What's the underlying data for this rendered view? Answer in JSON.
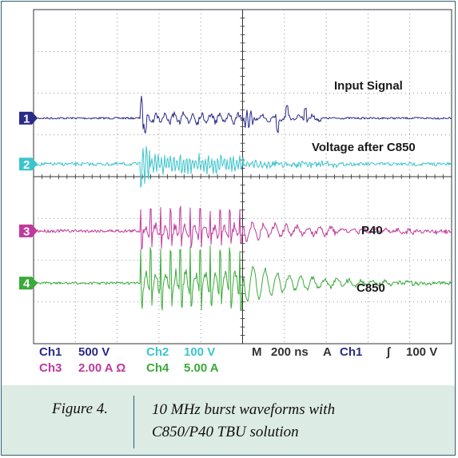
{
  "chart_data": {
    "type": "line",
    "grid": true,
    "x_divisions": 10,
    "y_divisions": 8,
    "channels": [
      {
        "id": "1",
        "name": "Input Signal",
        "color": "#2a2a8a",
        "level_div": 2.6
      },
      {
        "id": "2",
        "name": "Voltage after C850",
        "color": "#3cc4cc",
        "level_div": 3.7
      },
      {
        "id": "3",
        "name": "P40",
        "color": "#c0399b",
        "level_div": 5.3
      },
      {
        "id": "4",
        "name": "C850",
        "color": "#3aaa3a",
        "level_div": 6.55
      }
    ],
    "settings": [
      {
        "ch": "Ch1",
        "value": "500 V",
        "color": "#2a2a8a"
      },
      {
        "ch": "Ch2",
        "value": "100 V",
        "color": "#3cc4cc"
      },
      {
        "ch": "Ch3",
        "value": "2.00 A Ω",
        "color": "#c0399b"
      },
      {
        "ch": "Ch4",
        "value": "5.00 A",
        "color": "#3aaa3a"
      }
    ],
    "timebase": {
      "m": "M",
      "value": "200 ns",
      "a": "A",
      "ch": "Ch1",
      "slope": "∫",
      "level": "100 V"
    }
  },
  "caption": {
    "number": "Figure 4.",
    "text_line1": "10 MHz burst waveforms with",
    "text_line2": "C850/P40 TBU solution"
  }
}
